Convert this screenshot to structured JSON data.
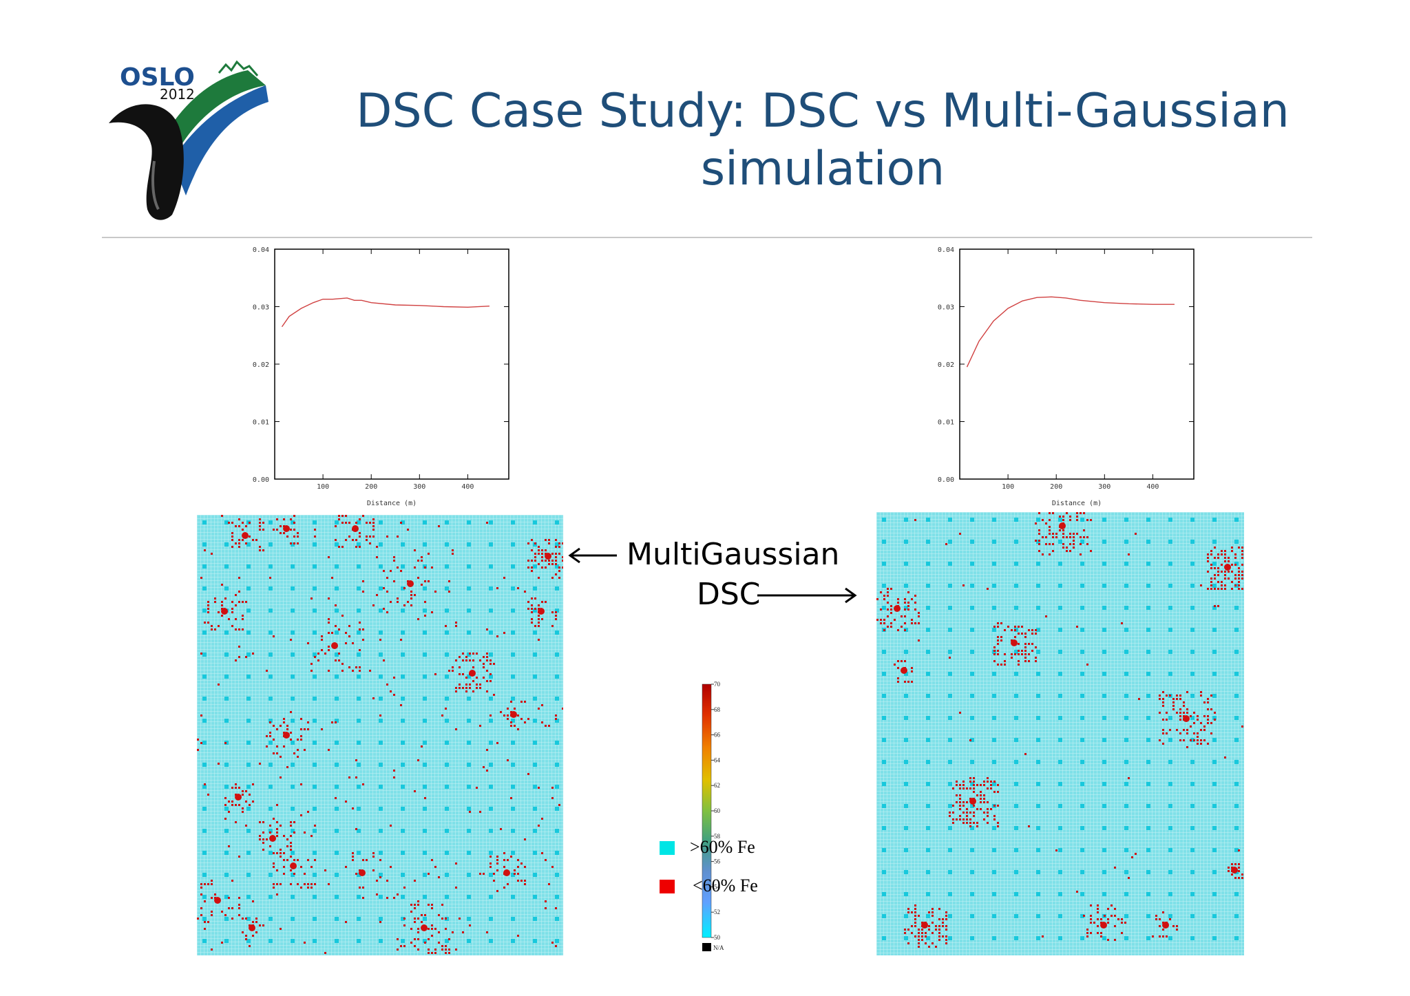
{
  "slide": {
    "title_line1": "DSC Case Study: DSC vs Multi-Gaussian",
    "title_line2": "simulation"
  },
  "logo": {
    "word": "OSLO",
    "year": "2012",
    "colors": {
      "text": "#1d4f8f",
      "green": "#1e7a3c",
      "blue": "#1f5fa8",
      "black": "#111111"
    }
  },
  "annotations": {
    "multigaussian_label": "MultiGaussian",
    "dsc_label": "DSC"
  },
  "legend": {
    "items": [
      {
        "label": ">60% Fe",
        "color": "#00e5e5"
      },
      {
        "label": "<60% Fe",
        "color": "#ee0000"
      }
    ]
  },
  "colorbar": {
    "ticks": [
      "70",
      "68",
      "66",
      "64",
      "62",
      "60",
      "58",
      "56",
      "54",
      "52",
      "50"
    ],
    "na_label": "N/A"
  },
  "chart_data": [
    {
      "type": "line",
      "xlabel": "Distance (m)",
      "ylabel": "",
      "xlim": [
        0,
        485
      ],
      "ylim": [
        0.0,
        0.04
      ],
      "xticks": [
        "100",
        "200",
        "300",
        "400"
      ],
      "yticks": [
        "0.00",
        "0.01",
        "0.02",
        "0.03",
        "0.04"
      ],
      "series": [
        {
          "color": "#d04040",
          "x": [
            15,
            30,
            55,
            80,
            100,
            120,
            150,
            165,
            180,
            200,
            250,
            300,
            350,
            400,
            445
          ],
          "y": [
            0.0265,
            0.0283,
            0.0297,
            0.0307,
            0.0313,
            0.0313,
            0.0315,
            0.0311,
            0.0311,
            0.0307,
            0.0303,
            0.0302,
            0.03,
            0.0299,
            0.0301
          ]
        }
      ]
    },
    {
      "type": "line",
      "xlabel": "Distance (m)",
      "ylabel": "",
      "xlim": [
        0,
        485
      ],
      "ylim": [
        0.0,
        0.04
      ],
      "xticks": [
        "100",
        "200",
        "300",
        "400"
      ],
      "yticks": [
        "0.00",
        "0.01",
        "0.02",
        "0.03",
        "0.04"
      ],
      "series": [
        {
          "color": "#d04040",
          "x": [
            15,
            40,
            70,
            100,
            130,
            160,
            190,
            220,
            250,
            300,
            350,
            400,
            445
          ],
          "y": [
            0.0195,
            0.024,
            0.0275,
            0.0297,
            0.031,
            0.0316,
            0.0317,
            0.0315,
            0.0311,
            0.0307,
            0.0305,
            0.0304,
            0.0304
          ]
        }
      ]
    },
    {
      "type": "heatmap",
      "title": "",
      "cell_color_high": "#7fe0e8",
      "cell_color_low": "#d01010",
      "hotspots": "scattered small clusters"
    },
    {
      "type": "heatmap",
      "title": "",
      "cell_color_high": "#7fe0e8",
      "cell_color_low": "#d01010",
      "hotspots": "few large compact clusters"
    }
  ]
}
